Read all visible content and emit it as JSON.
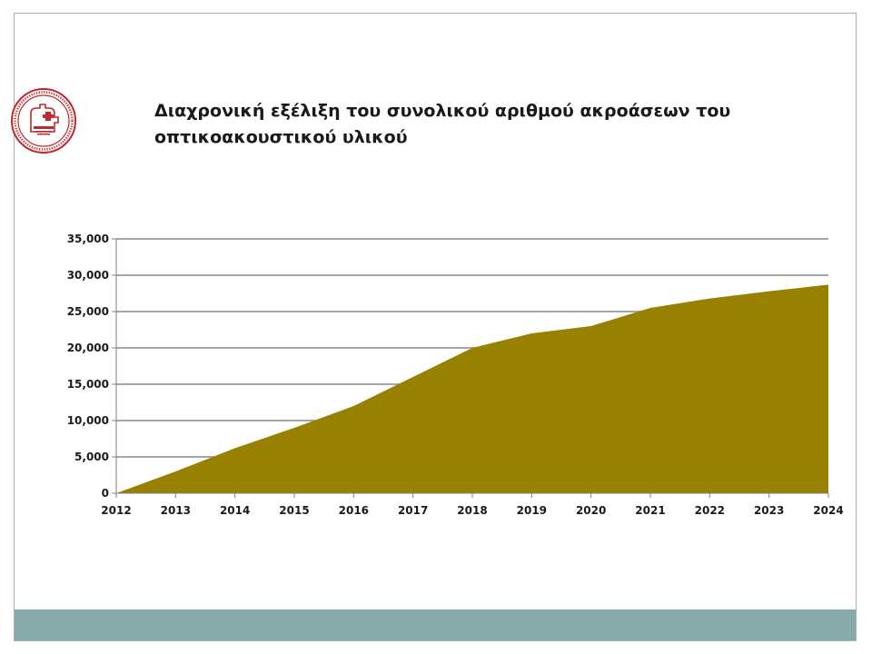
{
  "slide": {
    "title": "Διαχρονική εξέλιξη του συνολικού αριθμού ακροάσεων του οπτικοακουστικού υλικού",
    "logo_icon": "institution-seal-icon",
    "accent_color": "#87a9aa"
  },
  "chart_data": {
    "type": "area",
    "title": "Διαχρονική εξέλιξη του συνολικού αριθμού ακροάσεων του οπτικοακουστικού υλικού",
    "xlabel": "",
    "ylabel": "",
    "x": [
      "2012",
      "2013",
      "2014",
      "2015",
      "2016",
      "2017",
      "2018",
      "2019",
      "2020",
      "2021",
      "2022",
      "2023",
      "2024"
    ],
    "values": [
      0,
      3000,
      6200,
      9000,
      12000,
      16000,
      20000,
      22000,
      23000,
      25500,
      26800,
      27800,
      28700
    ],
    "ylim": [
      0,
      35000
    ],
    "yticks": [
      0,
      5000,
      10000,
      15000,
      20000,
      25000,
      30000,
      35000
    ],
    "ytick_labels": [
      "0",
      "5,000",
      "10,000",
      "15,000",
      "20,000",
      "25,000",
      "30,000",
      "35,000"
    ],
    "grid": true,
    "fill_color": "#998100",
    "grid_color": "#a6a6a6"
  }
}
